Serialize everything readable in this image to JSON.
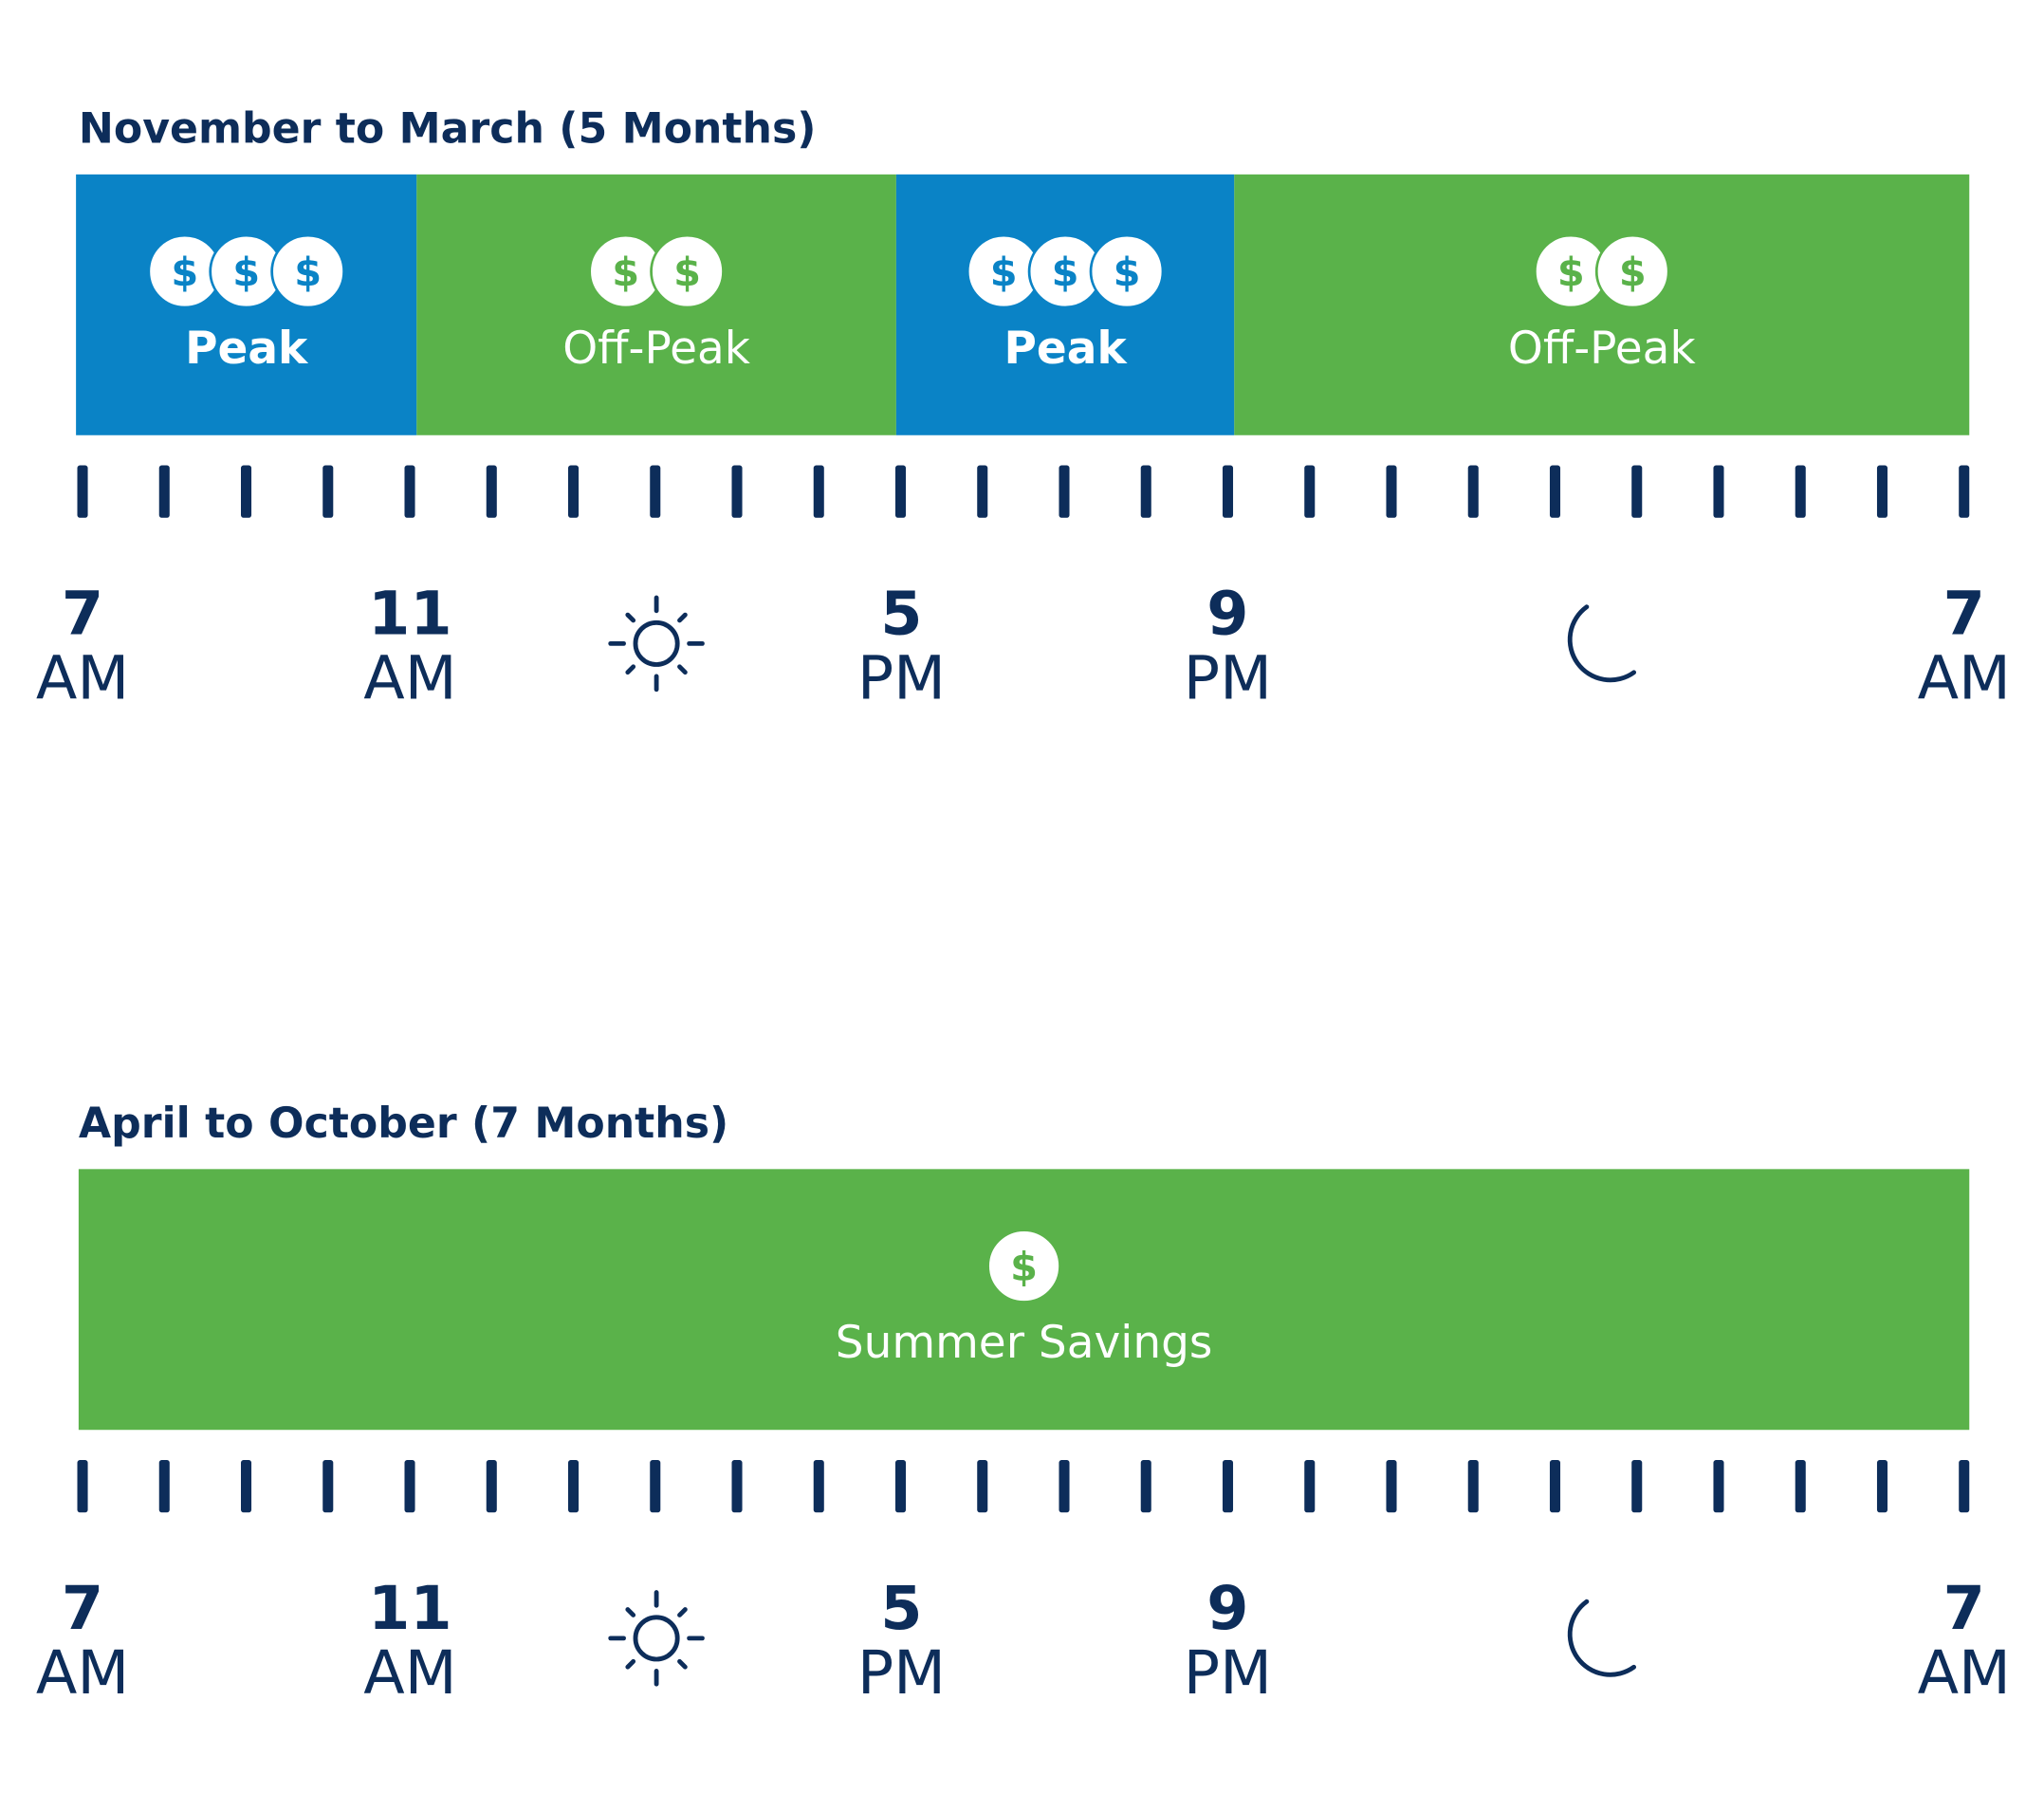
{
  "sections": [
    {
      "title": "November to March (5 Months)",
      "segments": [
        {
          "label": "Peak",
          "coins": [
            "$",
            "$",
            "$"
          ]
        },
        {
          "label": "Off-Peak",
          "coins": [
            "$",
            "$"
          ]
        },
        {
          "label": "Peak",
          "coins": [
            "$",
            "$",
            "$"
          ]
        },
        {
          "label": "Off-Peak",
          "coins": [
            "$",
            "$"
          ]
        }
      ],
      "time_labels": [
        {
          "number": "7",
          "period": "AM"
        },
        {
          "number": "11",
          "period": "AM"
        },
        {
          "number": "5",
          "period": "PM"
        },
        {
          "number": "9",
          "period": "PM"
        },
        {
          "number": "7",
          "period": "AM"
        }
      ]
    },
    {
      "title": "April to October (7 Months)",
      "segments": [
        {
          "label": "Summer Savings",
          "coins": [
            "$"
          ]
        }
      ],
      "time_labels": [
        {
          "number": "7",
          "period": "AM"
        },
        {
          "number": "11",
          "period": "AM"
        },
        {
          "number": "5",
          "period": "PM"
        },
        {
          "number": "9",
          "period": "PM"
        },
        {
          "number": "7",
          "period": "AM"
        }
      ]
    }
  ]
}
